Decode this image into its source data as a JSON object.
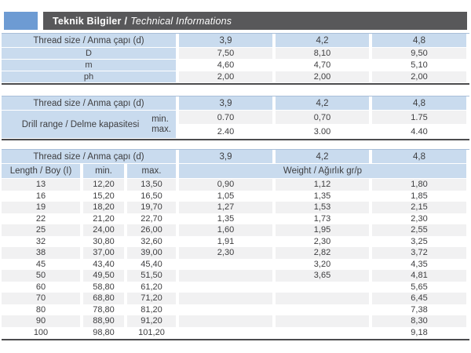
{
  "header": {
    "title_bold": "Teknik Bilgiler",
    "title_sep": "/",
    "title_italic": "Technical Informations"
  },
  "colors": {
    "accent_blue": "#6d9bd3",
    "bar_gray": "#58585a",
    "cell_blue": "#c9dbee",
    "stripe_gray": "#f1f1f2",
    "rule_dark": "#4c4c4e"
  },
  "thread_header_label": "Thread size / Anma çapı (d)",
  "thread_sizes": [
    "3,9",
    "4,2",
    "4,8"
  ],
  "table1": {
    "rows": [
      {
        "label": "D",
        "values": [
          "7,50",
          "8,10",
          "9,50"
        ]
      },
      {
        "label": "m",
        "values": [
          "4,60",
          "4,70",
          "5,10"
        ]
      },
      {
        "label": "ph",
        "values": [
          "2,00",
          "2,00",
          "2,00"
        ]
      }
    ]
  },
  "table2": {
    "row_label": "Drill range / Delme kapasitesi",
    "rows": [
      {
        "sub": "min.",
        "values": [
          "0.70",
          "0,70",
          "1.75"
        ]
      },
      {
        "sub": "max.",
        "values": [
          "2.40",
          "3.00",
          "4.40"
        ]
      }
    ]
  },
  "table3": {
    "subheader": {
      "length": "Length / Boy (I)",
      "min": "min.",
      "max": "max.",
      "weight": "Weight / Ağırlık gr/p"
    },
    "rows": [
      [
        "13",
        "12,20",
        "13,50",
        "0,90",
        "1,12",
        "1,80"
      ],
      [
        "16",
        "15,20",
        "16,50",
        "1,05",
        "1,35",
        "1,85"
      ],
      [
        "19",
        "18,20",
        "19,70",
        "1,27",
        "1,53",
        "2,15"
      ],
      [
        "22",
        "21,20",
        "22,70",
        "1,35",
        "1,73",
        "2,30"
      ],
      [
        "25",
        "24,00",
        "26,00",
        "1,60",
        "1,95",
        "2,55"
      ],
      [
        "32",
        "30,80",
        "32,60",
        "1,91",
        "2,30",
        "3,25"
      ],
      [
        "38",
        "37,00",
        "39,00",
        "2,30",
        "2,82",
        "3,72"
      ],
      [
        "45",
        "43,40",
        "45,40",
        "",
        "3,20",
        "4,35"
      ],
      [
        "50",
        "49,50",
        "51,50",
        "",
        "3,65",
        "4,81"
      ],
      [
        "60",
        "58,80",
        "61,20",
        "",
        "",
        "5,65"
      ],
      [
        "70",
        "68,80",
        "71,20",
        "",
        "",
        "6,45"
      ],
      [
        "80",
        "78,80",
        "81,20",
        "",
        "",
        "7,38"
      ],
      [
        "90",
        "88,90",
        "91,20",
        "",
        "",
        "8,30"
      ],
      [
        "100",
        "98,80",
        "101,20",
        "",
        "",
        "9,18"
      ]
    ]
  }
}
